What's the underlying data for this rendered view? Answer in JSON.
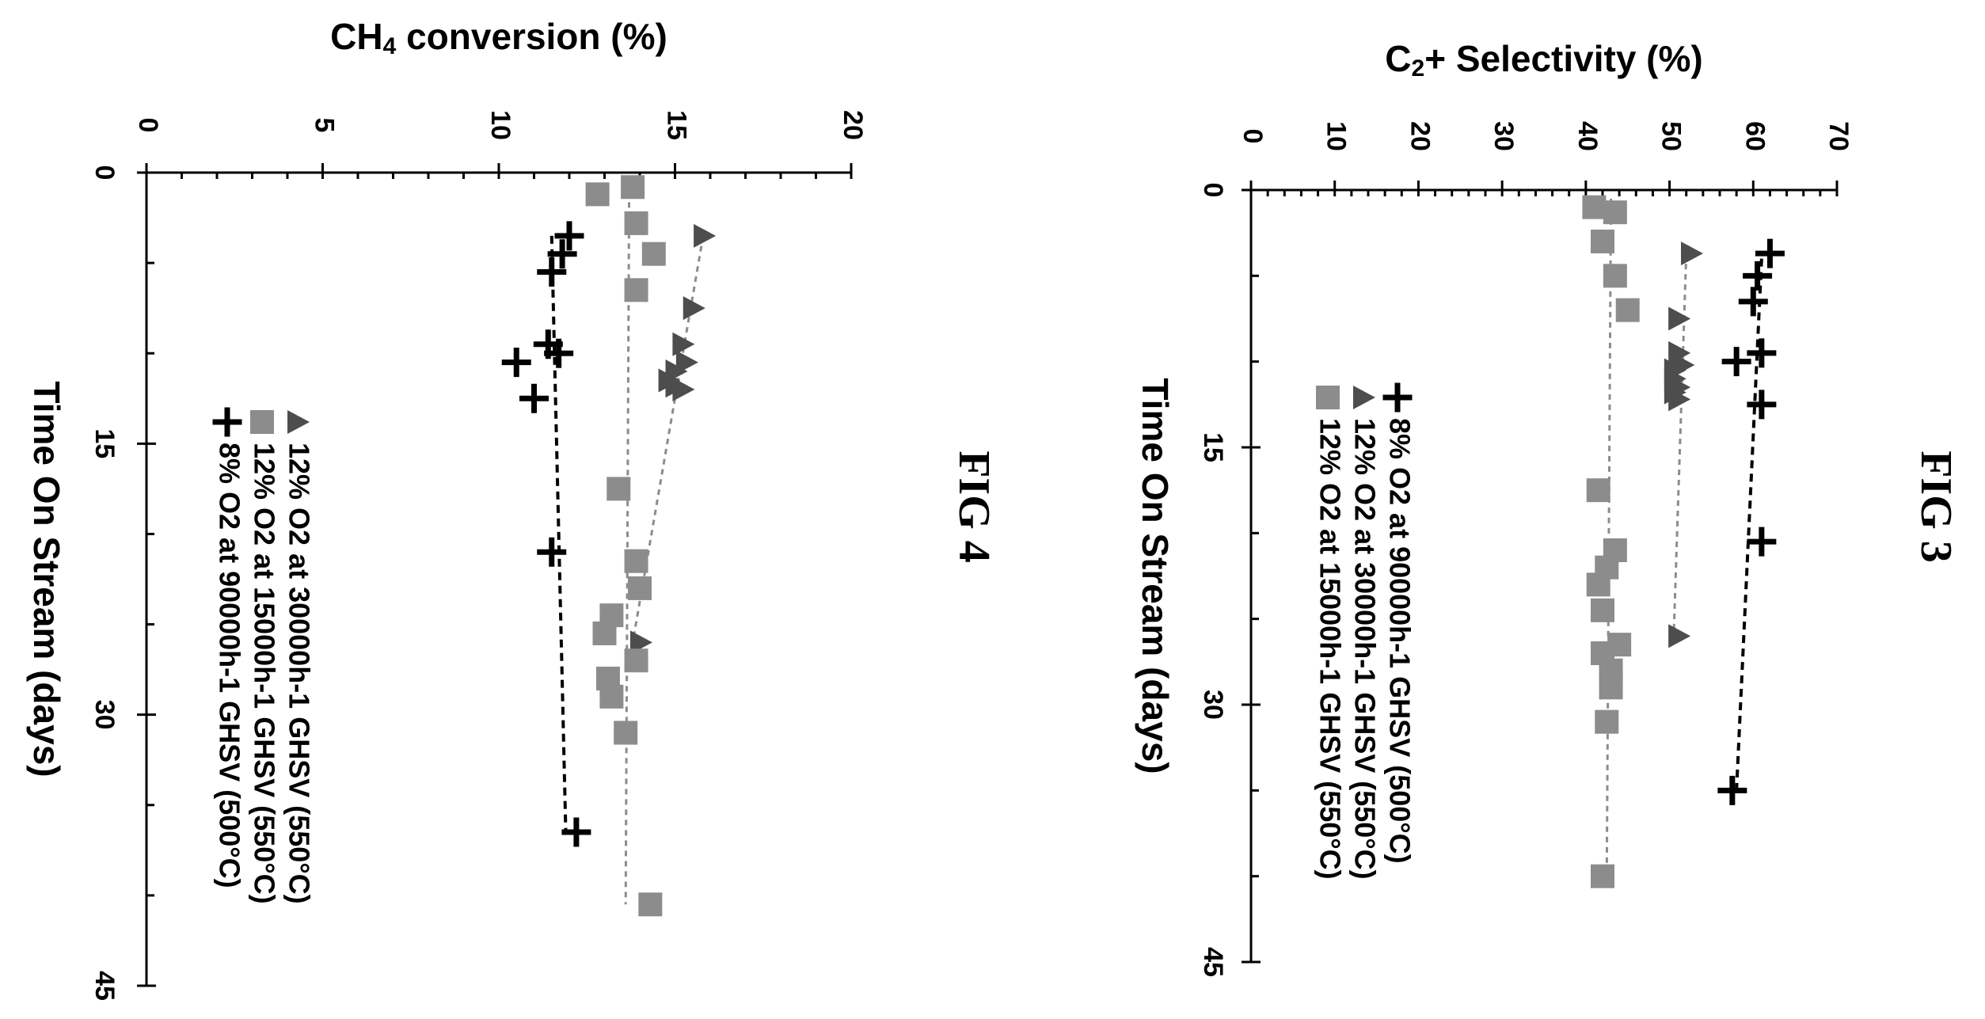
{
  "chart_data": [
    {
      "type": "scatter",
      "figure_label": "FIG 3",
      "xlabel": "Time On Stream (days)",
      "ylabel": "C",
      "ylabel_sub": "2",
      "ylabel_rest": "+ Selectivity (%)",
      "xlim": [
        0,
        45
      ],
      "ylim": [
        0,
        70
      ],
      "x_ticks": [
        "0",
        "15",
        "30",
        "45"
      ],
      "y_ticks": [
        "0",
        "10",
        "20",
        "30",
        "40",
        "50",
        "60",
        "70"
      ],
      "legend_placement": "bottom-left",
      "series": [
        {
          "name": "8% O2 at 90000h-1 GHSV (500°C)",
          "marker": "plus",
          "color": "#000000",
          "trend": [
            [
              4,
              61
            ],
            [
              35,
              58
            ]
          ],
          "points": [
            [
              3.7,
              62
            ],
            [
              5.0,
              60.5
            ],
            [
              6.5,
              60
            ],
            [
              9.5,
              61
            ],
            [
              10.0,
              58
            ],
            [
              12.5,
              61
            ],
            [
              20.5,
              61
            ],
            [
              35.0,
              57.5
            ]
          ]
        },
        {
          "name": "12% O2 at 30000h-1 GHSV (550°C)",
          "marker": "triangle",
          "color": "#4d4d4d",
          "trend": [
            [
              3.7,
              52
            ],
            [
              26.0,
              50.5
            ]
          ],
          "points": [
            [
              3.7,
              52.5
            ],
            [
              7.5,
              51
            ],
            [
              9.5,
              51
            ],
            [
              10.2,
              51.5
            ],
            [
              10.5,
              50.5
            ],
            [
              11.0,
              50.5
            ],
            [
              11.5,
              51
            ],
            [
              11.8,
              50.5
            ],
            [
              12.2,
              51
            ],
            [
              26.0,
              51
            ]
          ]
        },
        {
          "name": "12% O2 at 15000h-1 GHSV (550°C)",
          "marker": "square",
          "color": "#8c8c8c",
          "trend": [
            [
              0.5,
              43
            ],
            [
              40.0,
              42.5
            ]
          ],
          "points": [
            [
              1.0,
              41
            ],
            [
              1.3,
              43.5
            ],
            [
              3.0,
              42
            ],
            [
              5.0,
              43.5
            ],
            [
              7.0,
              45
            ],
            [
              17.5,
              41.5
            ],
            [
              21.0,
              43.5
            ],
            [
              22.0,
              42.5
            ],
            [
              23.0,
              41.5
            ],
            [
              24.5,
              42
            ],
            [
              26.5,
              44
            ],
            [
              27.0,
              42
            ],
            [
              28.0,
              43
            ],
            [
              29.0,
              43
            ],
            [
              31.0,
              42.5
            ],
            [
              40.0,
              42
            ]
          ]
        }
      ]
    },
    {
      "type": "scatter",
      "figure_label": "FIG 4",
      "xlabel": "Time On Stream (days)",
      "ylabel": "CH",
      "ylabel_sub": "4",
      "ylabel_rest": " conversion (%)",
      "xlim": [
        0,
        45
      ],
      "ylim": [
        0,
        20
      ],
      "x_ticks": [
        "0",
        "15",
        "30",
        "45"
      ],
      "y_ticks": [
        "0",
        "5",
        "10",
        "15",
        "20"
      ],
      "legend_placement": "bottom-left",
      "series": [
        {
          "name": "12% O2 at 30000h-1 GHSV (550°C)",
          "marker": "triangle",
          "color": "#4d4d4d",
          "trend": [
            [
              3.5,
              15.8
            ],
            [
              26.0,
              13.8
            ]
          ],
          "points": [
            [
              3.5,
              15.8
            ],
            [
              7.5,
              15.5
            ],
            [
              9.5,
              15.2
            ],
            [
              10.5,
              15.3
            ],
            [
              11.0,
              15.0
            ],
            [
              11.5,
              14.8
            ],
            [
              11.8,
              15.0
            ],
            [
              12.0,
              15.2
            ],
            [
              26.0,
              14.0
            ]
          ]
        },
        {
          "name": "12% O2 at 15000h-1 GHSV (550°C)",
          "marker": "square",
          "color": "#8c8c8c",
          "trend": [
            [
              0.5,
              13.7
            ],
            [
              40.5,
              13.6
            ]
          ],
          "points": [
            [
              0.8,
              13.8
            ],
            [
              1.2,
              12.8
            ],
            [
              2.8,
              13.9
            ],
            [
              4.5,
              14.4
            ],
            [
              6.5,
              13.9
            ],
            [
              17.5,
              13.4
            ],
            [
              21.5,
              13.9
            ],
            [
              23.0,
              14.0
            ],
            [
              24.5,
              13.2
            ],
            [
              25.5,
              13.0
            ],
            [
              27.0,
              13.9
            ],
            [
              28.0,
              13.1
            ],
            [
              29.0,
              13.2
            ],
            [
              31.0,
              13.6
            ],
            [
              40.5,
              14.3
            ]
          ]
        },
        {
          "name": "8% O2 at 90000h-1 GHSV (500°C)",
          "marker": "plus",
          "color": "#000000",
          "trend": [
            [
              3.5,
              11.5
            ],
            [
              36.5,
              11.9
            ]
          ],
          "points": [
            [
              3.5,
              12.0
            ],
            [
              4.5,
              11.8
            ],
            [
              5.5,
              11.5
            ],
            [
              9.5,
              11.4
            ],
            [
              10.0,
              11.7
            ],
            [
              10.5,
              10.5
            ],
            [
              12.5,
              11.0
            ],
            [
              21.0,
              11.5
            ],
            [
              36.5,
              12.2
            ]
          ]
        }
      ]
    }
  ]
}
